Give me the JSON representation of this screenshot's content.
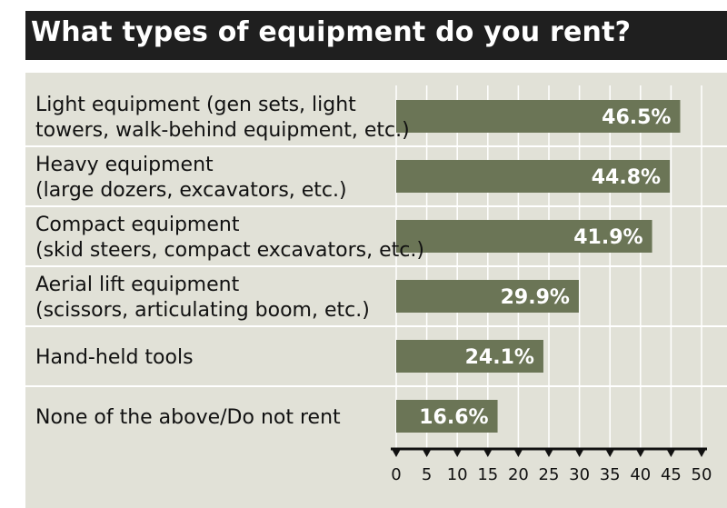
{
  "chart_data": {
    "type": "bar",
    "orientation": "horizontal",
    "title": "What types of equipment do you rent?",
    "categories": [
      {
        "main": "Light equipment",
        "detail": "(gen sets, light towers, walk-behind equipment, etc.)",
        "lines": [
          "Light equipment (gen sets, light",
          "towers, walk-behind equipment, etc.)"
        ]
      },
      {
        "main": "Heavy equipment",
        "detail": "(large dozers, excavators, etc.)",
        "lines": [
          "Heavy equipment",
          "(large dozers, excavators, etc.)"
        ]
      },
      {
        "main": "Compact equipment",
        "detail": "(skid steers, compact excavators, etc.)",
        "lines": [
          "Compact equipment",
          "(skid steers, compact excavators, etc.)"
        ]
      },
      {
        "main": "Aerial lift equipment",
        "detail": "(scissors, articulating boom, etc.)",
        "lines": [
          "Aerial lift equipment",
          "(scissors, articulating boom, etc.)"
        ]
      },
      {
        "main": "Hand-held tools",
        "detail": "",
        "lines": [
          "Hand-held tools"
        ]
      },
      {
        "main": "None of the above/Do not rent",
        "detail": "",
        "lines": [
          "None of the above/Do not rent"
        ]
      }
    ],
    "values": [
      46.5,
      44.8,
      41.9,
      29.9,
      24.1,
      16.6
    ],
    "value_labels": [
      "46.5%",
      "44.8%",
      "41.9%",
      "29.9%",
      "24.1%",
      "16.6%"
    ],
    "xlim": [
      0,
      50
    ],
    "xticks": [
      "0",
      "5",
      "10",
      "15",
      "20",
      "25",
      "30",
      "35",
      "40",
      "45",
      "50"
    ],
    "grid": true,
    "legend": "none",
    "colors": {
      "bar": "#6b7556",
      "panel": "#e1e1d7",
      "grid": "#ffffff",
      "title_bg": "#1f1f1f",
      "title_text": "#ffffff"
    }
  }
}
